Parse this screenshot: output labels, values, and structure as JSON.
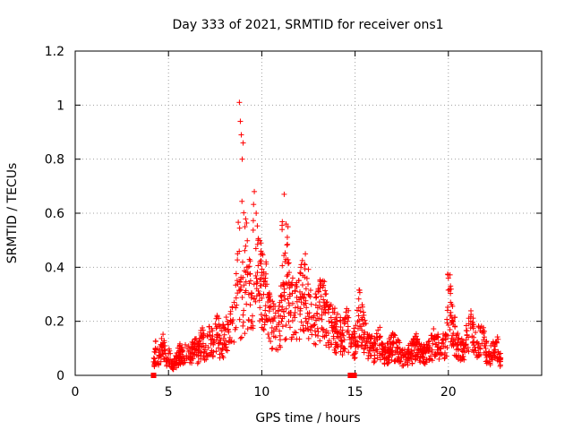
{
  "chart_data": {
    "type": "scatter",
    "title": "Day 333 of 2021, SRMTID for receiver ons1",
    "xlabel": "GPS time / hours",
    "ylabel": "SRMTID / TECUs",
    "xlim": [
      0,
      25
    ],
    "ylim": [
      0,
      1.2
    ],
    "x_ticks": [
      0,
      5,
      10,
      15,
      20
    ],
    "y_ticks": [
      0,
      0.2,
      0.4,
      0.6,
      0.8,
      1,
      1.2
    ],
    "x_tick_labels": [
      "0",
      "5",
      "10",
      "15",
      "20"
    ],
    "y_tick_labels": [
      "0",
      "0.2",
      "0.4",
      "0.6",
      "0.8",
      "1",
      "1.2"
    ],
    "grid": true,
    "marker": "plus",
    "color": "#ff0000",
    "series": [
      {
        "name": "SRMTID",
        "x": [
          4.2,
          4.3,
          4.5,
          4.7,
          4.9,
          5.0,
          5.2,
          5.4,
          5.6,
          5.8,
          6.0,
          6.2,
          6.4,
          6.6,
          6.8,
          7.0,
          7.2,
          7.4,
          7.6,
          7.8,
          8.0,
          8.2,
          8.4,
          8.6,
          8.7,
          8.8,
          8.85,
          8.9,
          8.95,
          9.0,
          9.1,
          9.2,
          9.3,
          9.4,
          9.5,
          9.6,
          9.7,
          9.8,
          9.9,
          10.0,
          10.1,
          10.2,
          10.4,
          10.6,
          10.8,
          11.0,
          11.2,
          11.3,
          11.5,
          11.8,
          12.0,
          12.2,
          12.5,
          12.8,
          13.0,
          13.3,
          13.6,
          14.0,
          14.3,
          14.6,
          14.8,
          15.0,
          15.2,
          15.5,
          15.8,
          16.0,
          16.3,
          16.6,
          17.0,
          17.3,
          17.6,
          18.0,
          18.3,
          18.6,
          19.0,
          19.3,
          19.6,
          19.9,
          20.0,
          20.2,
          20.5,
          20.8,
          21.0,
          21.2,
          21.5,
          21.8,
          22.0,
          22.3,
          22.6,
          22.8
        ],
        "values": [
          0.05,
          0.1,
          0.07,
          0.12,
          0.05,
          0.08,
          0.04,
          0.06,
          0.09,
          0.07,
          0.1,
          0.08,
          0.12,
          0.09,
          0.14,
          0.11,
          0.16,
          0.12,
          0.18,
          0.13,
          0.15,
          0.17,
          0.2,
          0.25,
          0.45,
          1.01,
          0.94,
          0.89,
          0.8,
          0.86,
          0.55,
          0.4,
          0.3,
          0.35,
          0.22,
          0.68,
          0.6,
          0.5,
          0.42,
          0.38,
          0.3,
          0.33,
          0.25,
          0.2,
          0.18,
          0.22,
          0.67,
          0.56,
          0.3,
          0.25,
          0.28,
          0.37,
          0.3,
          0.22,
          0.25,
          0.28,
          0.2,
          0.18,
          0.15,
          0.2,
          0.12,
          0.14,
          0.25,
          0.16,
          0.12,
          0.1,
          0.14,
          0.08,
          0.12,
          0.1,
          0.07,
          0.09,
          0.12,
          0.08,
          0.1,
          0.14,
          0.1,
          0.15,
          0.36,
          0.2,
          0.12,
          0.1,
          0.15,
          0.2,
          0.12,
          0.16,
          0.1,
          0.08,
          0.12,
          0.06
        ]
      }
    ],
    "zero_markers_x": [
      4.2,
      14.75,
      14.95
    ]
  }
}
